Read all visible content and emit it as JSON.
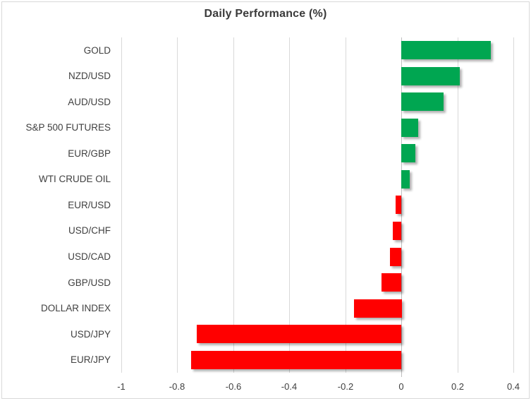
{
  "window": {
    "background": "#ffffff",
    "border_color": "#d9d9d9"
  },
  "chart_data": {
    "type": "bar",
    "orientation": "horizontal",
    "title": "Daily Performance (%)",
    "categories": [
      "GOLD",
      "NZD/USD",
      "AUD/USD",
      "S&P 500 FUTURES",
      "EUR/GBP",
      "WTI CRUDE OIL",
      "EUR/USD",
      "USD/CHF",
      "USD/CAD",
      "GBP/USD",
      "DOLLAR INDEX",
      "USD/JPY",
      "EUR/JPY"
    ],
    "values": [
      0.32,
      0.21,
      0.15,
      0.06,
      0.05,
      0.03,
      -0.02,
      -0.03,
      -0.04,
      -0.07,
      -0.17,
      -0.73,
      -0.75
    ],
    "xlabel": "",
    "ylabel": "",
    "xlim": [
      -1,
      0.4
    ],
    "x_ticks": [
      "-1",
      "-0.8",
      "-0.6",
      "-0.4",
      "-0.2",
      "0",
      "0.2",
      "0.4"
    ],
    "grid": "vertical-only",
    "legend": "none",
    "colors": {
      "positive_bar": "#00A651",
      "negative_bar": "#FF0000",
      "gridline": "#D9D9D9",
      "axis_line": "#BFBFBF",
      "label_text": "#404040",
      "title_text": "#3A3A3A"
    }
  }
}
